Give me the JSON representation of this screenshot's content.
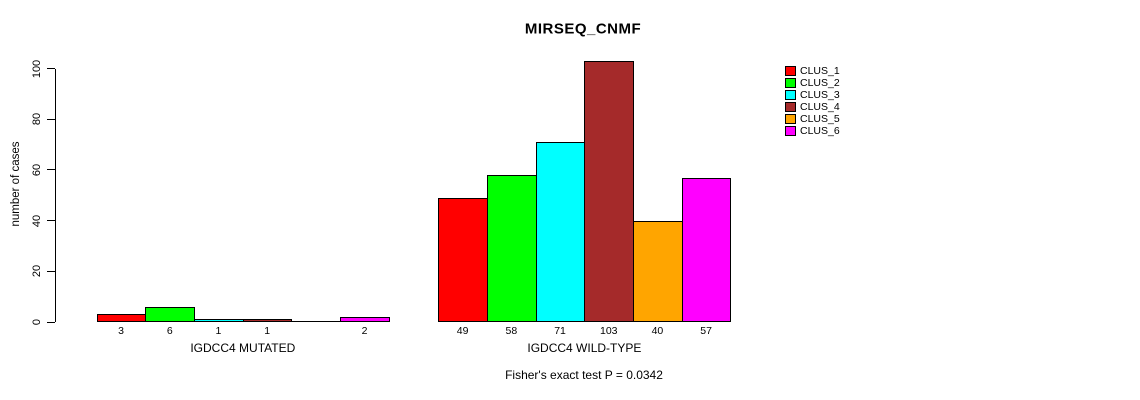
{
  "title": "MIRSEQ_CNMF",
  "y_axis_label": "number of cases",
  "p_value_text": "Fisher's exact test P = 0.0342",
  "chart_data": {
    "type": "bar",
    "title": "MIRSEQ_CNMF",
    "xlabel": "",
    "ylabel": "number of cases",
    "ylim": [
      0,
      100
    ],
    "yticks": [
      0,
      20,
      40,
      60,
      80,
      100
    ],
    "grid": false,
    "legend_position": "right",
    "legend": [
      "CLUS_1",
      "CLUS_2",
      "CLUS_3",
      "CLUS_4",
      "CLUS_5",
      "CLUS_6"
    ],
    "series_colors": [
      "#FF0000",
      "#00FF00",
      "#00FFFF",
      "#A52A2A",
      "#FFA500",
      "#FF00FF"
    ],
    "groups": [
      {
        "label": "IGDCC4 MUTATED",
        "values": [
          3,
          6,
          1,
          1,
          0,
          2
        ],
        "bar_labels": [
          "3",
          "6",
          "1",
          "1",
          "",
          "2"
        ]
      },
      {
        "label": "IGDCC4 WILD-TYPE",
        "values": [
          49,
          58,
          71,
          103,
          40,
          57
        ],
        "bar_labels": [
          "49",
          "58",
          "71",
          "103",
          "40",
          "57"
        ]
      }
    ],
    "annotation": "Fisher's exact test P = 0.0342"
  }
}
